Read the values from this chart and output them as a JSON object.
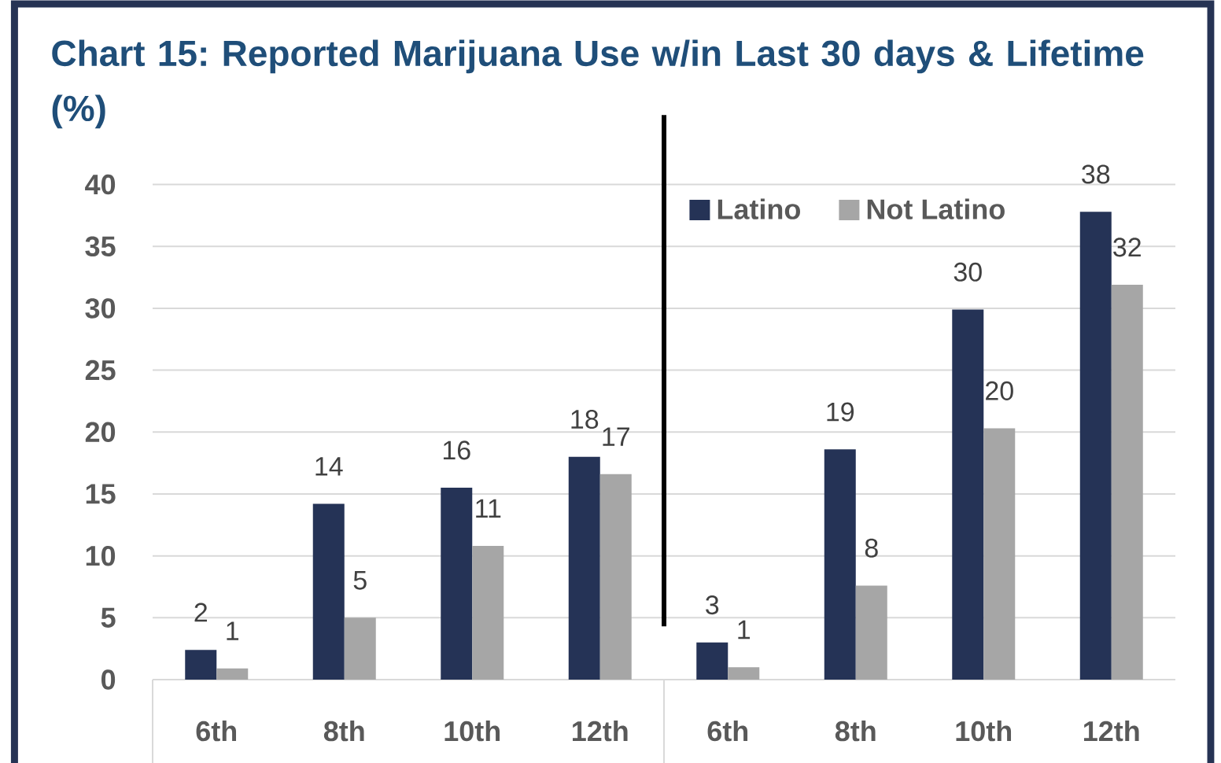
{
  "chart_data": {
    "type": "bar",
    "title": "Chart 15: Reported Marijuana Use w/in Last 30 days & Lifetime (%)",
    "categories": [
      "6th",
      "8th",
      "10th",
      "12th",
      "6th",
      "8th",
      "10th",
      "12th"
    ],
    "series": [
      {
        "name": "Latino",
        "color": "#253356",
        "values": [
          2.4,
          14.2,
          15.5,
          18.0,
          3.0,
          18.6,
          29.9,
          37.8
        ],
        "value_labels": [
          "2",
          "14",
          "16",
          "18",
          "3",
          "19",
          "30",
          "38"
        ]
      },
      {
        "name": "Not Latino",
        "color": "#a6a6a6",
        "values": [
          0.9,
          5.0,
          10.8,
          16.6,
          1.0,
          7.6,
          20.3,
          31.9
        ],
        "value_labels": [
          "1",
          "5",
          "11",
          "17",
          "1",
          "8",
          "20",
          "32"
        ]
      }
    ],
    "ylim": [
      0,
      40
    ],
    "yticks": [
      0,
      5,
      10,
      15,
      20,
      25,
      30,
      35,
      40
    ],
    "grid": "y",
    "legend": "top"
  }
}
